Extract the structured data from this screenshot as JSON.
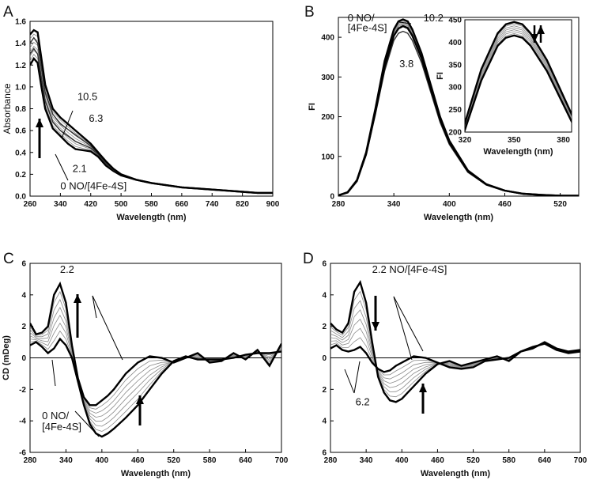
{
  "figure": {
    "panel_letters": [
      "A",
      "B",
      "C",
      "D"
    ]
  },
  "chart_data": [
    {
      "id": "A",
      "type": "line",
      "title": "",
      "xlabel": "Wavelength (nm)",
      "ylabel": "Absorbance",
      "xlim": [
        260,
        900
      ],
      "ylim": [
        0,
        1.6
      ],
      "xticks": [
        260,
        340,
        420,
        500,
        580,
        660,
        740,
        820,
        900
      ],
      "yticks": [
        0.0,
        0.2,
        0.4,
        0.6,
        0.8,
        1.0,
        1.2,
        1.4,
        1.6
      ],
      "ytick_labels": [
        "0.0",
        "0.2",
        "0.4",
        "0.6",
        "0.8",
        "1.0",
        "1.2",
        "1.4",
        "1.6"
      ],
      "series": [
        {
          "name": "0 NO/[4Fe-4S]",
          "x": [
            260,
            270,
            280,
            290,
            300,
            320,
            340,
            360,
            380,
            400,
            420,
            440,
            460,
            480,
            500,
            540,
            580,
            620,
            660,
            700,
            740,
            780,
            820,
            860,
            900
          ],
          "y": [
            1.2,
            1.26,
            1.22,
            1.0,
            0.8,
            0.62,
            0.55,
            0.48,
            0.43,
            0.42,
            0.41,
            0.36,
            0.28,
            0.23,
            0.19,
            0.15,
            0.12,
            0.1,
            0.08,
            0.07,
            0.06,
            0.05,
            0.04,
            0.03,
            0.03
          ]
        },
        {
          "name": "2.1",
          "x": [
            260,
            270,
            280,
            290,
            300,
            320,
            340,
            360,
            380,
            400,
            420,
            440,
            460,
            480,
            500,
            540,
            580,
            620,
            660,
            700,
            740,
            780,
            820,
            860,
            900
          ],
          "y": [
            1.3,
            1.35,
            1.3,
            1.08,
            0.87,
            0.68,
            0.6,
            0.55,
            0.5,
            0.47,
            0.44,
            0.38,
            0.3,
            0.24,
            0.2,
            0.15,
            0.12,
            0.1,
            0.08,
            0.07,
            0.06,
            0.05,
            0.04,
            0.03,
            0.03
          ]
        },
        {
          "name": "6.3",
          "x": [
            260,
            270,
            280,
            290,
            300,
            320,
            340,
            360,
            380,
            400,
            420,
            440,
            460,
            480,
            500,
            540,
            580,
            620,
            660,
            700,
            740,
            780,
            820,
            860,
            900
          ],
          "y": [
            1.4,
            1.45,
            1.4,
            1.17,
            0.95,
            0.75,
            0.66,
            0.61,
            0.56,
            0.51,
            0.46,
            0.39,
            0.31,
            0.25,
            0.2,
            0.15,
            0.12,
            0.1,
            0.08,
            0.07,
            0.06,
            0.05,
            0.04,
            0.03,
            0.03
          ]
        },
        {
          "name": "10.5",
          "x": [
            260,
            270,
            280,
            290,
            300,
            320,
            340,
            360,
            380,
            400,
            420,
            440,
            460,
            480,
            500,
            540,
            580,
            620,
            660,
            700,
            740,
            780,
            820,
            860,
            900
          ],
          "y": [
            1.48,
            1.52,
            1.5,
            1.26,
            1.02,
            0.8,
            0.72,
            0.66,
            0.6,
            0.54,
            0.48,
            0.4,
            0.32,
            0.25,
            0.2,
            0.15,
            0.12,
            0.1,
            0.08,
            0.07,
            0.06,
            0.05,
            0.04,
            0.03,
            0.03
          ]
        }
      ],
      "annotations": [
        {
          "text": "10.5",
          "x": 385,
          "y": 0.88
        },
        {
          "text": "6.3",
          "x": 415,
          "y": 0.68
        },
        {
          "text": "2.1",
          "x": 372,
          "y": 0.22
        },
        {
          "text": "0 NO/[4Fe-4S]",
          "x": 340,
          "y": 0.06
        }
      ],
      "arrow": "up"
    },
    {
      "id": "B",
      "type": "line",
      "title": "",
      "xlabel": "Wavelength (nm)",
      "ylabel": "FI",
      "xlim": [
        280,
        540
      ],
      "ylim": [
        0,
        450
      ],
      "xticks": [
        280,
        340,
        400,
        460,
        520
      ],
      "yticks": [
        0,
        100,
        200,
        300,
        400
      ],
      "series": [
        {
          "name": "0 NO/[4Fe-4S]",
          "x": [
            280,
            290,
            300,
            310,
            320,
            330,
            340,
            345,
            350,
            355,
            360,
            370,
            380,
            390,
            400,
            420,
            440,
            460,
            480,
            500,
            520,
            540
          ],
          "y": [
            2,
            10,
            40,
            110,
            220,
            340,
            420,
            440,
            445,
            440,
            420,
            360,
            280,
            200,
            140,
            65,
            30,
            14,
            6,
            3,
            1,
            1
          ]
        },
        {
          "name": "3.8",
          "x": [
            280,
            290,
            300,
            310,
            320,
            330,
            340,
            345,
            350,
            355,
            360,
            370,
            380,
            390,
            400,
            420,
            440,
            460,
            480,
            500,
            520,
            540
          ],
          "y": [
            2,
            9,
            37,
            103,
            205,
            315,
            392,
            410,
            415,
            410,
            392,
            336,
            261,
            186,
            130,
            60,
            28,
            13,
            6,
            3,
            1,
            1
          ]
        },
        {
          "name": "10.2",
          "x": [
            280,
            290,
            300,
            310,
            320,
            330,
            340,
            345,
            350,
            355,
            360,
            370,
            380,
            390,
            400,
            420,
            440,
            460,
            480,
            500,
            520,
            540
          ],
          "y": [
            2,
            9,
            38,
            106,
            212,
            326,
            404,
            422,
            428,
            423,
            404,
            347,
            270,
            193,
            135,
            63,
            29,
            14,
            6,
            3,
            1,
            1
          ]
        }
      ],
      "annotations": [
        {
          "text": "0 NO/",
          "x": 290,
          "y": 440
        },
        {
          "text": "[4Fe-4S]",
          "x": 290,
          "y": 415
        },
        {
          "text": "10.2",
          "x": 372,
          "y": 440
        },
        {
          "text": "3.8",
          "x": 346,
          "y": 325
        }
      ],
      "inset": {
        "xlabel": "Wavelength (nm)",
        "ylabel": "FI",
        "xlim": [
          320,
          385
        ],
        "ylim": [
          200,
          450
        ],
        "xticks": [
          320,
          350,
          380
        ],
        "yticks": [
          200,
          250,
          300,
          350,
          400,
          450
        ],
        "arrow": "down-up"
      }
    },
    {
      "id": "C",
      "type": "line",
      "title": "",
      "xlabel": "Wavelength (nm)",
      "ylabel": "CD (mDeg)",
      "xlim": [
        280,
        700
      ],
      "ylim": [
        -6,
        6
      ],
      "xticks": [
        280,
        340,
        400,
        460,
        520,
        580,
        640,
        700
      ],
      "yticks": [
        -6,
        -4,
        -2,
        0,
        2,
        4,
        6
      ],
      "ytick_labels": [
        "-6",
        "-4",
        "-2",
        "0",
        "2",
        "4",
        "6"
      ],
      "series": [
        {
          "name": "0 NO/[4Fe-4S]",
          "x": [
            280,
            290,
            300,
            310,
            320,
            330,
            340,
            350,
            360,
            370,
            380,
            390,
            400,
            410,
            420,
            440,
            460,
            480,
            500,
            520,
            540,
            560,
            580,
            600,
            620,
            640,
            660,
            680,
            700
          ],
          "y": [
            0.8,
            1.0,
            0.7,
            0.3,
            0.6,
            1.2,
            0.8,
            0.0,
            -1.5,
            -3.0,
            -4.2,
            -4.8,
            -5.0,
            -4.8,
            -4.5,
            -3.8,
            -3.0,
            -2.0,
            -1.0,
            -0.2,
            0.1,
            -0.1,
            -0.1,
            -0.1,
            0.0,
            0.2,
            0.3,
            0.3,
            0.4
          ]
        },
        {
          "name": "2.2",
          "x": [
            280,
            290,
            300,
            310,
            320,
            330,
            340,
            350,
            360,
            370,
            380,
            390,
            400,
            410,
            420,
            440,
            460,
            480,
            500,
            520,
            540,
            560,
            580,
            600,
            620,
            640,
            660,
            680,
            700
          ],
          "y": [
            2.2,
            1.5,
            1.6,
            2.0,
            4.0,
            4.7,
            3.5,
            0.8,
            -1.3,
            -2.5,
            -3.0,
            -3.0,
            -2.7,
            -2.4,
            -2.0,
            -1.0,
            -0.3,
            0.1,
            0.0,
            -0.3,
            0.0,
            0.3,
            -0.3,
            -0.2,
            0.3,
            -0.1,
            0.5,
            -0.5,
            0.9
          ]
        }
      ],
      "annotations": [
        {
          "text": "2.2",
          "x": 330,
          "y": 5.4
        },
        {
          "text": "0 NO/",
          "x": 300,
          "y": -3.9
        },
        {
          "text": "[4Fe-4S]",
          "x": 300,
          "y": -4.6
        }
      ],
      "arrows": [
        "up",
        "up"
      ]
    },
    {
      "id": "D",
      "type": "line",
      "title": "",
      "xlabel": "Wavelength (nm)",
      "ylabel": "",
      "xlim": [
        280,
        700
      ],
      "ylim": [
        -6,
        6
      ],
      "xticks": [
        280,
        340,
        400,
        460,
        520,
        580,
        640,
        700
      ],
      "yticks": [
        -6,
        -4,
        -2,
        0,
        2,
        4,
        6
      ],
      "ytick_labels": [
        "6",
        "4",
        "2",
        "0",
        "2",
        "4",
        "6"
      ],
      "series": [
        {
          "name": "2.2 NO/[4Fe-4S]",
          "x": [
            280,
            290,
            300,
            310,
            320,
            330,
            340,
            350,
            360,
            370,
            380,
            390,
            400,
            410,
            420,
            440,
            460,
            480,
            500,
            520,
            540,
            560,
            580,
            600,
            620,
            640,
            660,
            680,
            700
          ],
          "y": [
            2.2,
            1.8,
            1.6,
            2.2,
            4.2,
            4.8,
            3.5,
            1.0,
            -1.2,
            -2.2,
            -2.7,
            -2.8,
            -2.6,
            -2.2,
            -1.8,
            -1.0,
            -0.4,
            -0.2,
            -0.5,
            -0.3,
            -0.1,
            0.1,
            -0.2,
            0.4,
            0.6,
            1.0,
            0.6,
            0.4,
            0.5
          ]
        },
        {
          "name": "6.2",
          "x": [
            280,
            290,
            300,
            310,
            320,
            330,
            340,
            350,
            360,
            370,
            380,
            390,
            400,
            410,
            420,
            440,
            460,
            480,
            500,
            520,
            540,
            560,
            580,
            600,
            620,
            640,
            660,
            680,
            700
          ],
          "y": [
            0.6,
            0.8,
            0.5,
            0.4,
            0.5,
            0.7,
            0.3,
            -0.3,
            -0.7,
            -0.9,
            -0.8,
            -0.5,
            -0.3,
            -0.1,
            0.1,
            0.0,
            -0.3,
            -0.6,
            -0.7,
            -0.6,
            -0.2,
            -0.1,
            0.0,
            0.4,
            0.7,
            0.9,
            0.5,
            0.3,
            0.4
          ]
        }
      ],
      "annotations": [
        {
          "text": "2.2 NO/[4Fe-4S]",
          "x": 350,
          "y": 5.4
        },
        {
          "text": "6.2",
          "x": 322,
          "y": -3.0
        }
      ],
      "arrows": [
        "down",
        "up"
      ]
    }
  ]
}
